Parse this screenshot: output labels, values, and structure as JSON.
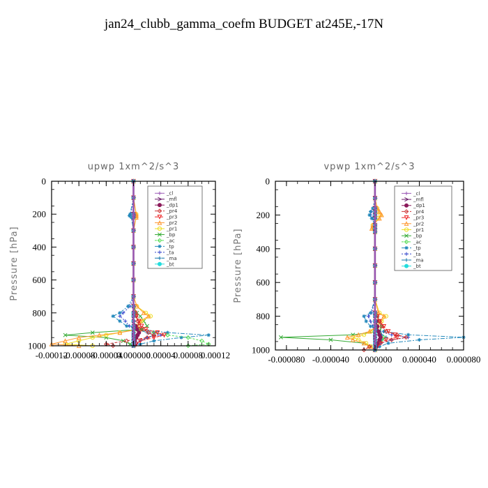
{
  "figure": {
    "title": "jan24_clubb_gamma_coefm  BUDGET at245E,-17N"
  },
  "legend_entries": [
    "_cl",
    "_mfl",
    "_dp1",
    "_pr4",
    "_pr3",
    "_pr2",
    "_pr1",
    "_bp",
    "_ac",
    "_tp",
    "_ta",
    "_ma",
    "_bt"
  ],
  "series_colors": {
    "_cl": "#9b59b6",
    "_mfl": "#6a1b6a",
    "_dp1": "#8b1a5a",
    "_pr4": "#cc3333",
    "_pr3": "#ee2222",
    "_pr2": "#ff9933",
    "_pr1": "#eedd22",
    "_bp": "#33aa33",
    "_ac": "#55dd55",
    "_tp": "#2288bb",
    "_ta": "#3344cc",
    "_ma": "#1177aa",
    "_bt": "#22dddd"
  },
  "chart_data": [
    {
      "type": "line",
      "title": "upwp   1xm^2/s^3",
      "xlabel": "",
      "ylabel": "Pressure [hPa]",
      "xlim": [
        -0.00012,
        0.00012
      ],
      "ylim": [
        1000,
        0
      ],
      "xticks": [
        -0.00012,
        -8e-05,
        -4e-05,
        0.0,
        4e-05,
        8e-05,
        0.00012
      ],
      "xtick_labels": [
        "-0.00012",
        "-0.00008",
        "-0.00004",
        "0.000000",
        "0.00004",
        "0.00008",
        "0.00012"
      ],
      "yticks": [
        0,
        200,
        400,
        600,
        800,
        1000
      ],
      "ytick_labels": [
        "0",
        "200",
        "400",
        "600",
        "800",
        "1000"
      ],
      "legend_position": "top-right",
      "pressure": [
        0,
        100,
        200,
        210,
        220,
        300,
        400,
        500,
        600,
        700,
        760,
        800,
        820,
        850,
        880,
        900,
        920,
        935,
        950,
        970,
        990,
        1000
      ],
      "series": [
        {
          "name": "_cl",
          "values": [
            0,
            0,
            0,
            0,
            0,
            0,
            0,
            0,
            0,
            0,
            0,
            0,
            0,
            0,
            0,
            0,
            0,
            0,
            0,
            0,
            0,
            0
          ]
        },
        {
          "name": "_mfl",
          "values": [
            0,
            0,
            0,
            0,
            0,
            0,
            0,
            0,
            0,
            0,
            0,
            0,
            0,
            0,
            0,
            0,
            0,
            0,
            0,
            0,
            0,
            0
          ]
        },
        {
          "name": "_dp1",
          "values": [
            0,
            0,
            0,
            0,
            0,
            0,
            0,
            0,
            0,
            0,
            0,
            0,
            0,
            0,
            3e-06,
            5e-06,
            8e-06,
            6e-06,
            4e-06,
            2e-06,
            1e-06,
            0
          ]
        },
        {
          "name": "_pr4",
          "values": [
            0,
            0,
            0,
            0,
            0,
            0,
            0,
            0,
            0,
            0,
            0,
            3e-06,
            4e-06,
            6e-06,
            8e-06,
            1.2e-05,
            2.2e-05,
            3e-05,
            2e-05,
            -1e-05,
            -4e-05,
            -3e-05
          ]
        },
        {
          "name": "_pr3",
          "values": [
            0,
            0,
            0,
            0,
            0,
            0,
            0,
            0,
            0,
            0,
            0,
            2e-06,
            4e-06,
            8e-06,
            1.2e-05,
            1.8e-05,
            3.5e-05,
            4.5e-05,
            3e-05,
            1e-05,
            4e-06,
            2e-06
          ]
        },
        {
          "name": "_pr2",
          "values": [
            0,
            0,
            4e-06,
            4e-06,
            4e-06,
            0,
            0,
            0,
            0,
            0,
            5e-06,
            1.5e-05,
            2.2e-05,
            1e-05,
            5e-06,
            8e-06,
            -2e-05,
            -5e-05,
            -8e-05,
            -0.0001,
            -0.00012,
            -8e-05
          ]
        },
        {
          "name": "_pr1",
          "values": [
            0,
            0,
            4e-06,
            4e-06,
            4e-06,
            0,
            0,
            0,
            0,
            0,
            5e-06,
            1.8e-05,
            2.5e-05,
            1.2e-05,
            5e-06,
            2e-06,
            -2e-05,
            -4e-05,
            -6e-05,
            -8e-05,
            -0.0001,
            -6e-05
          ]
        },
        {
          "name": "_bp",
          "values": [
            0,
            0,
            0,
            0,
            0,
            0,
            0,
            0,
            0,
            0,
            0,
            5e-06,
            1e-05,
            1.5e-05,
            2e-05,
            1.2e-05,
            -6e-05,
            -0.0001,
            -4e-05,
            -1.5e-05,
            -5e-06,
            0
          ]
        },
        {
          "name": "_ac",
          "values": [
            0,
            0,
            0,
            0,
            0,
            0,
            0,
            0,
            0,
            0,
            0,
            0,
            0,
            0,
            0,
            1e-05,
            3e-05,
            5e-05,
            8e-05,
            0.0001,
            0.00011,
            8e-05
          ]
        },
        {
          "name": "_tp",
          "values": [
            0,
            0,
            -5e-06,
            -6e-06,
            -3e-06,
            0,
            0,
            0,
            0,
            0,
            -8e-06,
            -2e-05,
            -3e-05,
            -2e-05,
            -1e-05,
            1e-05,
            5e-05,
            0.00011,
            7e-05,
            3e-05,
            1e-05,
            0
          ]
        },
        {
          "name": "_ta",
          "values": [
            0,
            0,
            -4e-06,
            -5e-06,
            -3e-06,
            0,
            0,
            0,
            0,
            0,
            -5e-06,
            -1.5e-05,
            -2e-05,
            -1.2e-05,
            -6e-06,
            8e-06,
            3e-05,
            4e-05,
            2e-05,
            1e-05,
            5e-06,
            0
          ]
        },
        {
          "name": "_ma",
          "values": [
            0,
            0,
            0,
            0,
            0,
            0,
            0,
            0,
            0,
            0,
            0,
            0,
            0,
            0,
            0,
            5e-06,
            2e-05,
            3e-05,
            2e-05,
            1e-05,
            3e-06,
            0
          ]
        },
        {
          "name": "_bt",
          "values": [
            0,
            0,
            0,
            0,
            0,
            0,
            0,
            0,
            0,
            0,
            0,
            0,
            0,
            0,
            0,
            0,
            0,
            0,
            0,
            0,
            0,
            0
          ]
        }
      ]
    },
    {
      "type": "line",
      "title": "vpwp   1xm^2/s^3",
      "xlabel": "",
      "ylabel": "Pressure [hPa]",
      "xlim": [
        -9e-05,
        8e-05
      ],
      "ylim": [
        1000,
        0
      ],
      "xticks": [
        -8e-05,
        -4e-05,
        0.0,
        4e-05,
        8e-05
      ],
      "xtick_labels": [
        "-0.000080",
        "-0.000040",
        "0.000000",
        "0.000040",
        "0.000080"
      ],
      "yticks": [
        0,
        200,
        400,
        600,
        800,
        1000
      ],
      "ytick_labels": [
        "0",
        "200",
        "400",
        "600",
        "800",
        "1000"
      ],
      "legend_position": "top-right",
      "pressure": [
        0,
        100,
        160,
        180,
        200,
        220,
        260,
        280,
        300,
        400,
        500,
        600,
        700,
        780,
        800,
        830,
        860,
        890,
        910,
        925,
        940,
        960,
        980,
        1000
      ],
      "series": [
        {
          "name": "_cl",
          "values": [
            0,
            0,
            0,
            0,
            0,
            0,
            0,
            0,
            0,
            0,
            0,
            0,
            0,
            0,
            0,
            0,
            0,
            0,
            0,
            0,
            0,
            0,
            0,
            0
          ]
        },
        {
          "name": "_mfl",
          "values": [
            0,
            0,
            0,
            0,
            0,
            0,
            0,
            0,
            0,
            0,
            0,
            0,
            0,
            0,
            0,
            0,
            0,
            0,
            0,
            0,
            0,
            0,
            0,
            0
          ]
        },
        {
          "name": "_dp1",
          "values": [
            0,
            0,
            0,
            0,
            0,
            0,
            0,
            0,
            0,
            0,
            0,
            0,
            0,
            0,
            0,
            1e-06,
            2e-06,
            3e-06,
            4e-06,
            5e-06,
            4e-06,
            2e-06,
            1e-06,
            0
          ]
        },
        {
          "name": "_pr4",
          "values": [
            0,
            0,
            0,
            0,
            0,
            0,
            0,
            0,
            0,
            0,
            0,
            0,
            0,
            0,
            2e-06,
            4e-06,
            6e-06,
            1e-05,
            2e-05,
            2.8e-05,
            1.5e-05,
            5e-06,
            -5e-06,
            -1e-05
          ]
        },
        {
          "name": "_pr3",
          "values": [
            0,
            0,
            0,
            0,
            0,
            0,
            0,
            0,
            0,
            0,
            0,
            0,
            0,
            0,
            2e-06,
            4e-06,
            8e-06,
            1.2e-05,
            1.8e-05,
            2e-05,
            1e-05,
            4e-06,
            2e-06,
            0
          ]
        },
        {
          "name": "_pr2",
          "values": [
            0,
            0,
            2e-06,
            4e-06,
            6e-06,
            4e-06,
            -2e-06,
            -3e-06,
            0,
            0,
            0,
            0,
            0,
            3e-06,
            8e-06,
            5e-06,
            2e-06,
            -5e-06,
            -1.5e-05,
            -2.5e-05,
            -2e-05,
            -1e-05,
            -5e-06,
            0
          ]
        },
        {
          "name": "_pr1",
          "values": [
            0,
            0,
            2e-06,
            3e-06,
            5e-06,
            3e-06,
            -2e-06,
            -2e-06,
            0,
            0,
            0,
            0,
            0,
            4e-06,
            1e-05,
            6e-06,
            2e-06,
            -4e-06,
            -1e-05,
            -2e-05,
            -1.5e-05,
            -8e-06,
            -4e-06,
            0
          ]
        },
        {
          "name": "_bp",
          "values": [
            0,
            0,
            0,
            0,
            0,
            0,
            0,
            0,
            0,
            0,
            0,
            0,
            0,
            0,
            2e-06,
            4e-06,
            6e-06,
            4e-06,
            -2e-05,
            -8.5e-05,
            -4e-05,
            -1e-05,
            -4e-06,
            0
          ]
        },
        {
          "name": "_ac",
          "values": [
            0,
            0,
            0,
            0,
            0,
            0,
            0,
            0,
            0,
            0,
            0,
            0,
            0,
            0,
            0,
            0,
            0,
            0,
            4e-06,
            8e-06,
            6e-06,
            3e-06,
            1e-06,
            0
          ]
        },
        {
          "name": "_tp",
          "values": [
            0,
            0,
            -2e-06,
            -4e-06,
            -5e-06,
            -3e-06,
            0,
            0,
            0,
            0,
            0,
            0,
            0,
            -4e-06,
            -1e-05,
            -8e-06,
            -4e-06,
            8e-06,
            3e-05,
            8e-05,
            4e-05,
            1.2e-05,
            4e-06,
            0
          ]
        },
        {
          "name": "_ta",
          "values": [
            0,
            0,
            -1e-06,
            -3e-06,
            -4e-06,
            -2e-06,
            0,
            0,
            0,
            0,
            0,
            0,
            0,
            -3e-06,
            -6e-06,
            -4e-06,
            -2e-06,
            4e-06,
            1.5e-05,
            3e-05,
            1.5e-05,
            5e-06,
            2e-06,
            0
          ]
        },
        {
          "name": "_ma",
          "values": [
            0,
            0,
            0,
            0,
            0,
            0,
            0,
            0,
            0,
            0,
            0,
            0,
            0,
            0,
            0,
            0,
            0,
            2e-06,
            6e-06,
            1e-05,
            6e-06,
            3e-06,
            1e-06,
            0
          ]
        },
        {
          "name": "_bt",
          "values": [
            0,
            0,
            0,
            0,
            0,
            0,
            0,
            0,
            0,
            0,
            0,
            0,
            0,
            0,
            0,
            0,
            0,
            0,
            0,
            0,
            0,
            0,
            0,
            0
          ]
        }
      ]
    }
  ]
}
